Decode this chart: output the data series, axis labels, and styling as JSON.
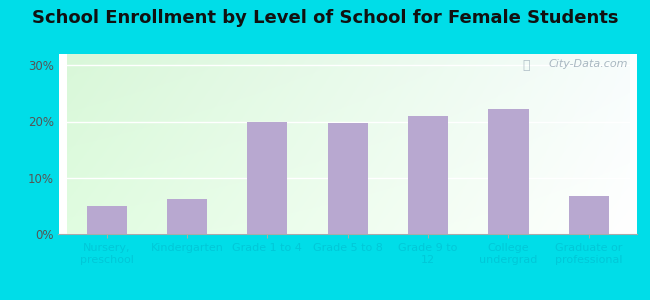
{
  "title": "School Enrollment by Level of School for Female Students",
  "categories": [
    "Nursery,\npreschool",
    "Kindergarten",
    "Grade 1 to 4",
    "Grade 5 to 8",
    "Grade 9 to\n12",
    "College\nundergrad",
    "Graduate or\nprofessional"
  ],
  "values": [
    5.0,
    6.2,
    20.0,
    19.8,
    21.0,
    22.3,
    6.8
  ],
  "bar_color": "#b8a8d0",
  "yticks": [
    0,
    10,
    20,
    30
  ],
  "ytick_labels": [
    "0%",
    "10%",
    "20%",
    "30%"
  ],
  "ylim": [
    0,
    32
  ],
  "title_fontsize": 13,
  "outer_bg_color": "#00dde8",
  "grad_color_topleft": [
    0.85,
    0.97,
    0.85,
    1.0
  ],
  "grad_color_topright": [
    0.97,
    0.99,
    0.99,
    1.0
  ],
  "grad_color_bottomleft": [
    0.88,
    0.99,
    0.88,
    1.0
  ],
  "grad_color_bottomright": [
    1.0,
    1.0,
    1.0,
    1.0
  ],
  "tick_label_color": "#00c8d8",
  "ytick_label_color": "#555555",
  "watermark": "City-Data.com",
  "watermark_color": "#a0b0bb"
}
